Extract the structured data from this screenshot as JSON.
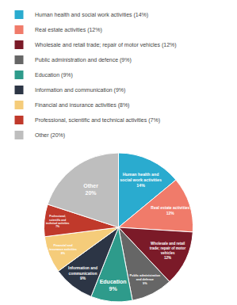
{
  "chart_data": {
    "type": "pie",
    "categories": [
      "Human health and social work activities (14%)",
      "Real estate activities (12%)",
      "Wholesale and retail trade; repair of motor vehicles (12%)",
      "Public administration and defence (9%)",
      "Education (9%)",
      "Information and communication (9%)",
      "Financial and insurance activities (8%)",
      "Professional, scientific and technical activities (7%)",
      "Other (20%)"
    ],
    "values": [
      14,
      12,
      12,
      9,
      9,
      9,
      8,
      7,
      20
    ],
    "value_labels": [
      "Human health and\nsocial work activities\n14%",
      "Real estate activities\n12%",
      "Wholesale and retail\ntrade; repair of motor\nvehicles\n12%",
      "Public administration\nand defence\n9%",
      "Education\n9%",
      "Information and\ncommunication\n9%",
      "Financial and\ninsurance activities\n8%",
      "Professional,\nscientific and\ntechnical activities\n7%",
      "Other\n20%"
    ],
    "colors": [
      "#2AABCF",
      "#F07B6A",
      "#7B1A28",
      "#666666",
      "#2E9B8B",
      "#2C3545",
      "#F5CC7A",
      "#C0392B",
      "#BEBEBE"
    ],
    "data_labels": true,
    "legend": "upper left"
  }
}
